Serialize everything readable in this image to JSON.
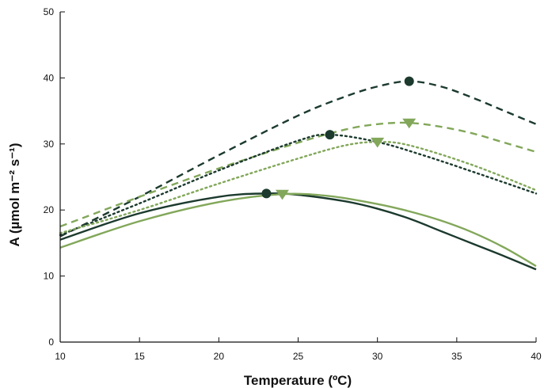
{
  "chart_data": {
    "type": "line",
    "title": "",
    "xlabel": "Temperature (ºC)",
    "ylabel": "A (µmol m⁻² s⁻¹)",
    "xlim": [
      10,
      40
    ],
    "ylim": [
      0,
      50
    ],
    "xticks": [
      10,
      15,
      20,
      25,
      30,
      35,
      40
    ],
    "yticks": [
      0,
      10,
      20,
      30,
      40,
      50
    ],
    "grid": false,
    "legend": "none",
    "series": [
      {
        "color": "#1c3a2e",
        "dash": "dashed",
        "x": [
          10,
          15,
          20,
          25,
          28,
          30,
          32,
          34,
          36,
          38,
          40
        ],
        "y": [
          16.0,
          22.0,
          28.3,
          34.3,
          37.2,
          38.7,
          39.5,
          38.7,
          37.0,
          35.0,
          33.0
        ],
        "optimum": {
          "x": 32,
          "y": 39.5,
          "marker": "circle"
        }
      },
      {
        "color": "#82a75a",
        "dash": "dashed",
        "x": [
          10,
          15,
          20,
          25,
          28,
          30,
          32,
          34,
          36,
          38,
          40
        ],
        "y": [
          17.5,
          22.0,
          26.3,
          30.2,
          32.2,
          33.0,
          33.2,
          32.6,
          31.6,
          30.2,
          28.8
        ],
        "optimum": {
          "x": 32,
          "y": 33.2,
          "marker": "triangle"
        }
      },
      {
        "color": "#1c3a2e",
        "dash": "dotted",
        "x": [
          10,
          15,
          20,
          25,
          27,
          30,
          33,
          36,
          40
        ],
        "y": [
          16.2,
          21.0,
          26.0,
          30.5,
          31.4,
          30.3,
          28.2,
          25.8,
          22.5
        ],
        "optimum": {
          "x": 27,
          "y": 31.4,
          "marker": "circle"
        }
      },
      {
        "color": "#82a75a",
        "dash": "dotted",
        "x": [
          10,
          15,
          20,
          25,
          28,
          30,
          32,
          36,
          40
        ],
        "y": [
          16.5,
          20.0,
          24.0,
          27.8,
          29.8,
          30.3,
          29.8,
          26.8,
          23.0
        ],
        "optimum": {
          "x": 30,
          "y": 30.3,
          "marker": "triangle"
        }
      },
      {
        "color": "#1c3a2e",
        "dash": "solid",
        "x": [
          10,
          15,
          20,
          23,
          25,
          28,
          30,
          32,
          34,
          36,
          38,
          40
        ],
        "y": [
          15.5,
          19.5,
          22.0,
          22.5,
          22.3,
          21.3,
          20.2,
          18.7,
          16.8,
          14.9,
          13.0,
          11.0
        ],
        "optimum": {
          "x": 23,
          "y": 22.5,
          "marker": "circle"
        }
      },
      {
        "color": "#82a75a",
        "dash": "solid",
        "x": [
          10,
          15,
          20,
          24,
          27,
          30,
          32,
          34,
          36,
          38,
          40
        ],
        "y": [
          14.3,
          18.3,
          21.2,
          22.4,
          22.1,
          20.9,
          19.8,
          18.4,
          16.6,
          14.3,
          11.5
        ],
        "optimum": {
          "x": 24,
          "y": 22.4,
          "marker": "triangle"
        }
      }
    ]
  }
}
